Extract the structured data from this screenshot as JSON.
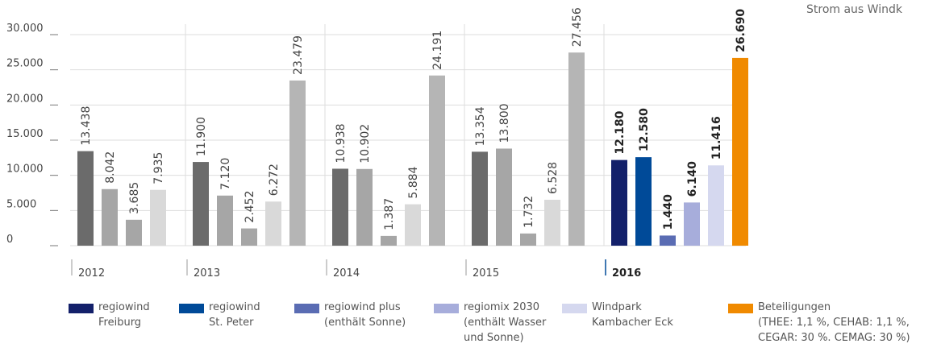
{
  "chart_data": {
    "type": "bar",
    "subtitle": "Strom aus Windk",
    "categories": [
      "2012",
      "2013",
      "2014",
      "2015",
      "2016"
    ],
    "ylim": [
      0,
      30000
    ],
    "yticks": [
      {
        "value": 0,
        "label": "0"
      },
      {
        "value": 5000,
        "label": "5.000"
      },
      {
        "value": 10000,
        "label": "10.000"
      },
      {
        "value": 15000,
        "label": "15.000"
      },
      {
        "value": 20000,
        "label": "20.000"
      },
      {
        "value": 25000,
        "label": "25.000"
      },
      {
        "value": 30000,
        "label": "30.000"
      }
    ],
    "grid": true,
    "series": [
      {
        "name": "regiowind\nFreiburg",
        "color": "#13206a",
        "muted_color": "#6b6b6b",
        "values": [
          13438,
          11900,
          10938,
          13354,
          12180
        ],
        "value_labels": [
          "13.438",
          "11.900",
          "10.938",
          "13.354",
          "12.180"
        ]
      },
      {
        "name": "regiowind\nSt. Peter",
        "color": "#004a98",
        "muted_color": "#a6a6a6",
        "values": [
          8042,
          7120,
          10902,
          13800,
          12580
        ],
        "value_labels": [
          "8.042",
          "7.120",
          "10.902",
          "13.800",
          "12.580"
        ]
      },
      {
        "name": "regiowind plus\n(enthält Sonne)",
        "color": "#5a6cb3",
        "muted_color": "#a6a6a6",
        "values": [
          3685,
          2452,
          1387,
          1732,
          1440
        ],
        "value_labels": [
          "3.685",
          "2.452",
          "1.387",
          "1.732",
          "1.440"
        ]
      },
      {
        "name": "regiomix 2030\n(enthält Wasser\nund Sonne)",
        "color": "#a7addb",
        "muted_color": "#d9d9d9",
        "values": [
          7935,
          6272,
          5884,
          6528,
          6140
        ],
        "value_labels": [
          "7.935",
          "6.272",
          "5.884",
          "6.528",
          "6.140"
        ]
      },
      {
        "name": "Windpark\nKambacher Eck",
        "color": "#d5d8ef",
        "values": [
          null,
          null,
          null,
          null,
          11416
        ],
        "value_labels": [
          null,
          null,
          null,
          null,
          "11.416"
        ]
      },
      {
        "name": "Beteiligungen\n(THEE: 1,1 %, CEHAB: 1,1 %,\nCEGAR: 30 %. CEMAG: 30 %)",
        "color": "#f08a00",
        "muted_color": "#b5b5b5",
        "values": [
          null,
          23479,
          24191,
          27456,
          26690
        ],
        "value_labels": [
          null,
          "23.479",
          "24.191",
          "27.456",
          "26.690"
        ]
      }
    ]
  }
}
